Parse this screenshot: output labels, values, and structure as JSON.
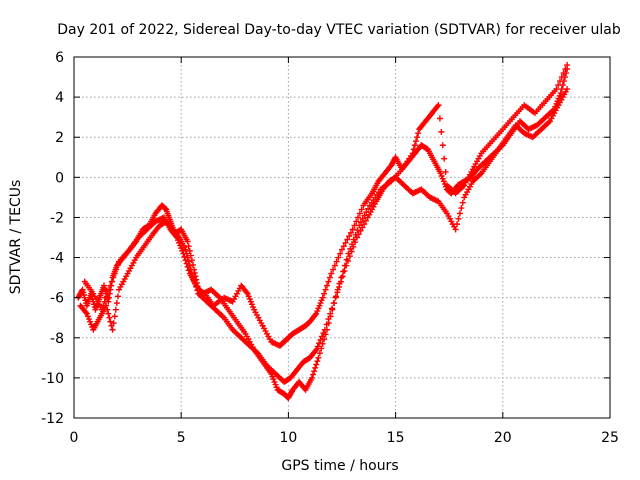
{
  "chart_data": {
    "type": "scatter",
    "title": "Day 201 of 2022, Sidereal Day-to-day VTEC variation (SDTVAR) for receiver ulab",
    "xlabel": "GPS time / hours",
    "ylabel": "SDTVAR / TECUs",
    "xlim": [
      0,
      25
    ],
    "ylim": [
      -12,
      6
    ],
    "xticks": [
      0,
      5,
      10,
      15,
      20,
      25
    ],
    "yticks": [
      -12,
      -10,
      -8,
      -6,
      -4,
      -2,
      0,
      2,
      4,
      6
    ],
    "xtick_labels": [
      "0",
      "5",
      "10",
      "15",
      "20",
      "25"
    ],
    "ytick_labels": [
      "-12",
      "-10",
      "-8",
      "-6",
      "-4",
      "-2",
      "0",
      "2",
      "4",
      "6"
    ],
    "grid": true,
    "marker": "plus",
    "color": "#ff0000",
    "series": [
      {
        "name": "track-1",
        "x": [
          0.2,
          0.4,
          0.6,
          0.8,
          1.0,
          1.2,
          1.4,
          1.6,
          1.8,
          2.0,
          2.3,
          2.6,
          2.9,
          3.2,
          3.5,
          3.8,
          4.1,
          4.3,
          4.5,
          4.7,
          5.0,
          5.3,
          5.6,
          5.8,
          6.1,
          6.5,
          7.0,
          7.4,
          7.8,
          8.1,
          8.4,
          8.8,
          9.2,
          9.6,
          9.8,
          10.0,
          10.2,
          10.5,
          10.8,
          11.0,
          11.3,
          11.6,
          12.0,
          12.5,
          13.0,
          13.5,
          13.9,
          14.2,
          14.5,
          14.8,
          15.0,
          15.3,
          15.6,
          15.9,
          16.2,
          16.5,
          16.8,
          17.1,
          17.4,
          17.6,
          17.9,
          18.2,
          18.5,
          18.8,
          19.2,
          19.6,
          20.0,
          20.4,
          20.8,
          21.2,
          21.6,
          22.0,
          22.4,
          22.7,
          23.0
        ],
        "y": [
          -6.0,
          -5.6,
          -6.4,
          -5.8,
          -6.6,
          -6.0,
          -5.4,
          -6.2,
          -5.0,
          -4.4,
          -4.0,
          -3.6,
          -3.2,
          -2.6,
          -2.4,
          -1.8,
          -1.4,
          -1.6,
          -2.2,
          -2.8,
          -2.6,
          -3.2,
          -4.6,
          -5.6,
          -5.8,
          -6.4,
          -6.0,
          -6.2,
          -5.4,
          -5.8,
          -6.6,
          -7.4,
          -8.2,
          -8.4,
          -8.2,
          -8.0,
          -7.8,
          -7.6,
          -7.4,
          -7.2,
          -6.8,
          -6.0,
          -4.8,
          -3.6,
          -2.6,
          -1.4,
          -0.8,
          -0.2,
          0.2,
          0.6,
          1.0,
          0.4,
          0.8,
          1.2,
          1.6,
          1.4,
          0.8,
          0.2,
          -0.6,
          -0.8,
          -0.4,
          -0.2,
          0.0,
          0.4,
          0.8,
          1.2,
          1.6,
          2.2,
          2.8,
          2.4,
          2.6,
          3.0,
          3.4,
          4.2,
          5.4
        ]
      },
      {
        "name": "track-2",
        "x": [
          0.3,
          0.6,
          0.9,
          1.2,
          1.5,
          1.8,
          2.1,
          2.5,
          2.9,
          3.3,
          3.7,
          4.0,
          4.3,
          4.6,
          4.9,
          5.2,
          5.5,
          5.8,
          6.2,
          6.6,
          7.0,
          7.4,
          7.8,
          8.2,
          8.6,
          9.0,
          9.4,
          9.8,
          10.1,
          10.4,
          10.7,
          11.0,
          11.3,
          11.7,
          12.2,
          12.7,
          13.2,
          13.7,
          14.1,
          14.4,
          14.7,
          15.0,
          15.4,
          15.8,
          16.2,
          16.6,
          17.0,
          17.4,
          17.8,
          18.2,
          18.6,
          19.0,
          19.4,
          19.8,
          20.2,
          20.6,
          21.0,
          21.4,
          21.8,
          22.2,
          22.6,
          23.0
        ],
        "y": [
          -6.4,
          -6.8,
          -7.6,
          -7.0,
          -6.4,
          -7.6,
          -5.6,
          -4.8,
          -4.0,
          -3.4,
          -2.8,
          -2.4,
          -2.2,
          -2.6,
          -3.0,
          -3.6,
          -4.8,
          -5.8,
          -6.2,
          -6.6,
          -7.0,
          -7.6,
          -8.0,
          -8.4,
          -8.8,
          -9.4,
          -9.8,
          -10.2,
          -10.0,
          -9.6,
          -9.2,
          -9.0,
          -8.6,
          -7.6,
          -6.0,
          -4.4,
          -3.0,
          -2.0,
          -1.2,
          -0.6,
          -0.2,
          0.0,
          -0.4,
          -0.8,
          -0.6,
          -1.0,
          -1.2,
          -1.8,
          -2.6,
          -1.0,
          -0.2,
          0.2,
          0.8,
          1.4,
          2.0,
          2.6,
          2.2,
          2.0,
          2.4,
          2.8,
          3.6,
          4.4
        ]
      },
      {
        "name": "track-3",
        "x": [
          0.5,
          0.9,
          1.3,
          1.7,
          2.1,
          2.6,
          3.0,
          3.4,
          3.8,
          4.2,
          4.5,
          4.8,
          5.1,
          5.4,
          5.7,
          6.0,
          6.4,
          6.8,
          7.2,
          7.6,
          8.0,
          8.4,
          8.8,
          9.2,
          9.5,
          9.8,
          10.0,
          10.2,
          10.5,
          10.8,
          11.1,
          11.4,
          11.8,
          12.3,
          12.8,
          13.3,
          13.8,
          14.3,
          14.8,
          15.3,
          15.8,
          16.1,
          16.4,
          16.7,
          17.0,
          17.4,
          17.8,
          18.2,
          18.6,
          19.0,
          19.5,
          20.0,
          20.5,
          21.0,
          21.5,
          22.0,
          22.5,
          23.0
        ],
        "y": [
          -5.2,
          -5.8,
          -6.6,
          -5.4,
          -4.2,
          -3.6,
          -3.0,
          -2.6,
          -2.2,
          -2.0,
          -2.6,
          -3.0,
          -3.8,
          -4.8,
          -5.4,
          -5.8,
          -5.6,
          -6.0,
          -6.6,
          -7.2,
          -7.8,
          -8.6,
          -9.2,
          -9.8,
          -10.6,
          -10.8,
          -11.0,
          -10.6,
          -10.2,
          -10.6,
          -10.0,
          -9.0,
          -7.6,
          -5.6,
          -3.8,
          -2.4,
          -1.4,
          -0.6,
          -0.2,
          0.4,
          1.2,
          2.4,
          2.8,
          3.2,
          3.6,
          -0.4,
          -0.8,
          -0.4,
          0.4,
          1.2,
          1.8,
          2.4,
          3.0,
          3.6,
          3.2,
          3.8,
          4.4,
          5.6
        ]
      }
    ]
  }
}
